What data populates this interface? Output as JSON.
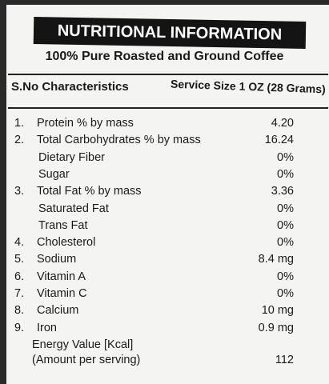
{
  "header": {
    "title": "NUTRITIONAL INFORMATION",
    "subtitle": "100% Pure Roasted and Ground Coffee"
  },
  "table": {
    "columns": [
      "S.No Characteristics",
      "Service Size 1 OZ (28 Grams)"
    ],
    "rows": [
      {
        "no": "1.",
        "name": "Protein  % by mass",
        "value": "4.20"
      },
      {
        "no": "2.",
        "name": "Total Carbohydrates % by mass",
        "value": "16.24"
      },
      {
        "name": "Dietary Fiber",
        "value": "0%"
      },
      {
        "name": "Sugar",
        "value": "0%"
      },
      {
        "no": "3.",
        "name": "Total Fat % by mass",
        "value": "3.36"
      },
      {
        "name": "Saturated Fat",
        "value": "0%"
      },
      {
        "name": "Trans Fat",
        "value": "0%"
      },
      {
        "no": "4.",
        "name": "Cholesterol",
        "value": "0%"
      },
      {
        "no": "5.",
        "name": "Sodium",
        "value": "8.4 mg"
      },
      {
        "no": "6.",
        "name": "Vitamin A",
        "value": "0%"
      },
      {
        "no": "7.",
        "name": "Vitamin C",
        "value": "0%"
      },
      {
        "no": "8.",
        "name": "Calcium",
        "value": "10 mg"
      },
      {
        "no": "9.",
        "name": "Iron",
        "value": "0.9 mg"
      },
      {
        "name": "Energy Value [Kcal]",
        "note": "(Amount per serving)",
        "value": "112"
      }
    ]
  }
}
